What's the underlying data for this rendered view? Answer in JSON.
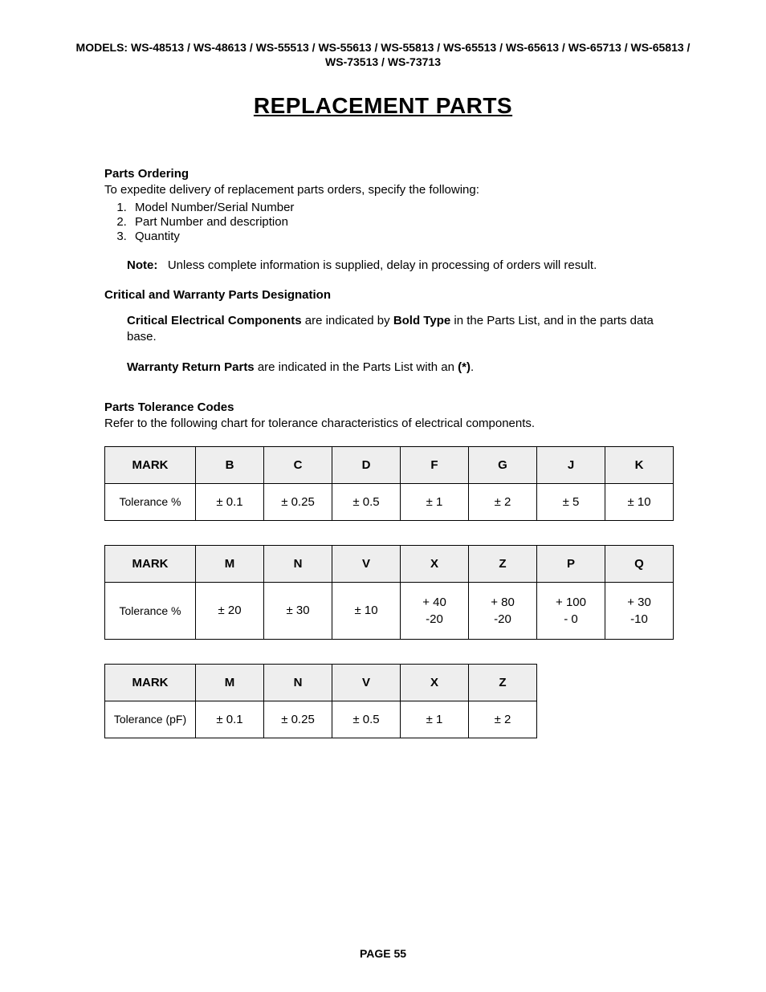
{
  "header": {
    "models_label": "MODELS:",
    "models_text": "WS-48513 / WS-48613 / WS-55513 / WS-55613 / WS-55813 / WS-65513 / WS-65613 / WS-65713 / WS-65813 / WS-73513 / WS-73713"
  },
  "title": "REPLACEMENT PARTS",
  "parts_ordering": {
    "heading": "Parts Ordering",
    "intro": "To expedite delivery of replacement parts orders, specify the following:",
    "items": [
      "Model Number/Serial Number",
      "Part Number and description",
      "Quantity"
    ],
    "note_label": "Note:",
    "note_text": "Unless complete information is supplied, delay in processing of orders will result."
  },
  "critical": {
    "heading": "Critical and Warranty Parts Designation",
    "line1_bold1": "Critical Electrical Components",
    "line1_mid": " are indicated by ",
    "line1_bold2": "Bold Type",
    "line1_end": " in the Parts List, and in the parts data base.",
    "line2_bold1": "Warranty Return Parts",
    "line2_mid": " are indicated in the Parts List with an ",
    "line2_bold2": "(*)",
    "line2_end": "."
  },
  "tolerance": {
    "heading": "Parts Tolerance Codes",
    "intro": "Refer to the following chart for tolerance characteristics of electrical components."
  },
  "table1": {
    "type": "table",
    "mark_header": "MARK",
    "row_label": "Tolerance %",
    "header_bg": "#eeeeee",
    "border_color": "#000000",
    "columns": [
      "B",
      "C",
      "D",
      "F",
      "G",
      "J",
      "K"
    ],
    "values": [
      "± 0.1",
      "± 0.25",
      "± 0.5",
      "± 1",
      "± 2",
      "± 5",
      "± 10"
    ],
    "col_widths": {
      "mark": 104,
      "data": 76
    },
    "font_size": 15
  },
  "table2": {
    "type": "table",
    "mark_header": "MARK",
    "row_label": "Tolerance %",
    "header_bg": "#eeeeee",
    "border_color": "#000000",
    "columns": [
      "M",
      "N",
      "V",
      "X",
      "Z",
      "P",
      "Q"
    ],
    "values": [
      "± 20",
      "± 30",
      "± 10",
      "+ 40\n-20",
      "+ 80\n-20",
      "+ 100\n- 0",
      "+ 30\n-10"
    ],
    "col_widths": {
      "mark": 104,
      "data": 76
    },
    "font_size": 15
  },
  "table3": {
    "type": "table",
    "mark_header": "MARK",
    "row_label": "Tolerance (pF)",
    "header_bg": "#eeeeee",
    "border_color": "#000000",
    "columns": [
      "M",
      "N",
      "V",
      "X",
      "Z"
    ],
    "values": [
      "± 0.1",
      "± 0.25",
      "± 0.5",
      "± 1",
      "± 2"
    ],
    "col_widths": {
      "mark": 104,
      "data": 76
    },
    "font_size": 15
  },
  "footer": {
    "page_label": "PAGE 55"
  }
}
